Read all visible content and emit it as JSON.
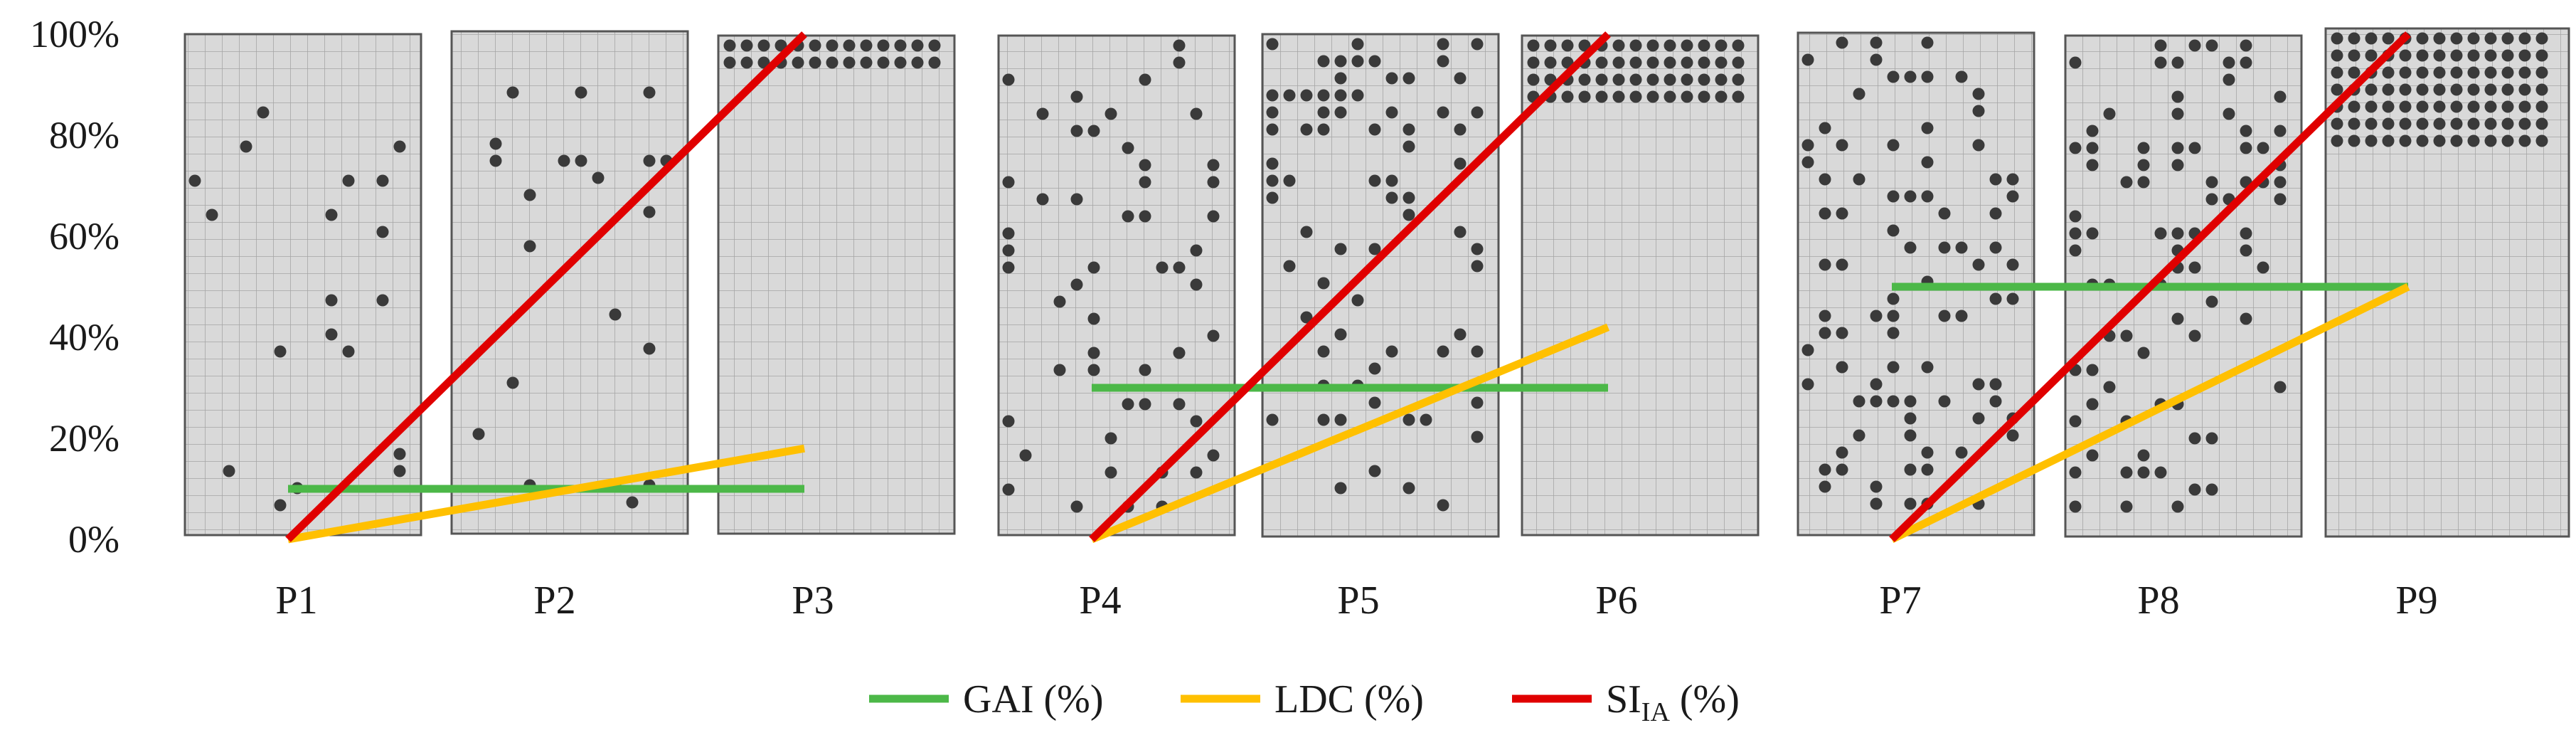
{
  "chart_data": {
    "type": "line",
    "title": "",
    "xlabel": "",
    "ylabel": "",
    "ylim": [
      0,
      100
    ],
    "y_ticks": [
      "0%",
      "20%",
      "40%",
      "60%",
      "80%",
      "100%"
    ],
    "categories": [
      "P1",
      "P2",
      "P3",
      "P4",
      "P5",
      "P6",
      "P7",
      "P8",
      "P9"
    ],
    "legend_position": "bottom",
    "series": [
      {
        "name": "GAI (%)",
        "label_main": "GAI",
        "label_sub": "",
        "label_suffix": " (%)",
        "color": "#4CB848",
        "segments": [
          {
            "x": [
              "P1",
              "P3"
            ],
            "y": [
              10,
              10
            ]
          },
          {
            "x": [
              "P4",
              "P6"
            ],
            "y": [
              30,
              30
            ]
          },
          {
            "x": [
              "P7",
              "P9"
            ],
            "y": [
              50,
              50
            ]
          }
        ]
      },
      {
        "name": "LDC (%)",
        "label_main": "LDC",
        "label_sub": "",
        "label_suffix": " (%)",
        "color": "#FFC000",
        "segments": [
          {
            "x": [
              "P1",
              "P3"
            ],
            "y": [
              0,
              18
            ]
          },
          {
            "x": [
              "P4",
              "P6"
            ],
            "y": [
              0,
              42
            ]
          },
          {
            "x": [
              "P7",
              "P9"
            ],
            "y": [
              0,
              50
            ]
          }
        ]
      },
      {
        "name": "SI_IA (%)",
        "label_main": "SI",
        "label_sub": "IA",
        "label_suffix": " (%)",
        "color": "#E00000",
        "segments": [
          {
            "x": [
              "P1",
              "P3"
            ],
            "y": [
              0,
              100
            ]
          },
          {
            "x": [
              "P4",
              "P6"
            ],
            "y": [
              0,
              100
            ]
          },
          {
            "x": [
              "P7",
              "P9"
            ],
            "y": [
              0,
              100
            ]
          }
        ]
      }
    ],
    "panels": [
      {
        "category": "P1",
        "top_pct": 100,
        "dots": "scattered",
        "density": "sparse"
      },
      {
        "category": "P2",
        "top_pct": 100,
        "dots": "scattered",
        "density": "sparse"
      },
      {
        "category": "P3",
        "top_pct": 100,
        "dots": "top-band",
        "band_rows": 2
      },
      {
        "category": "P4",
        "top_pct": 100,
        "dots": "scattered",
        "density": "medium"
      },
      {
        "category": "P5",
        "top_pct": 100,
        "dots": "scattered",
        "density": "medium-top"
      },
      {
        "category": "P6",
        "top_pct": 100,
        "dots": "top-band",
        "band_rows": 4
      },
      {
        "category": "P7",
        "top_pct": 100,
        "dots": "scattered",
        "density": "dense"
      },
      {
        "category": "P8",
        "top_pct": 100,
        "dots": "scattered",
        "density": "dense-top"
      },
      {
        "category": "P9",
        "top_pct": 100,
        "dots": "top-band",
        "band_rows": 7
      }
    ],
    "colors": {
      "panel_fill": "#D9D9D9",
      "grid": "#A6A6A6",
      "border": "#555555",
      "dot": "#3A3A3A"
    }
  }
}
